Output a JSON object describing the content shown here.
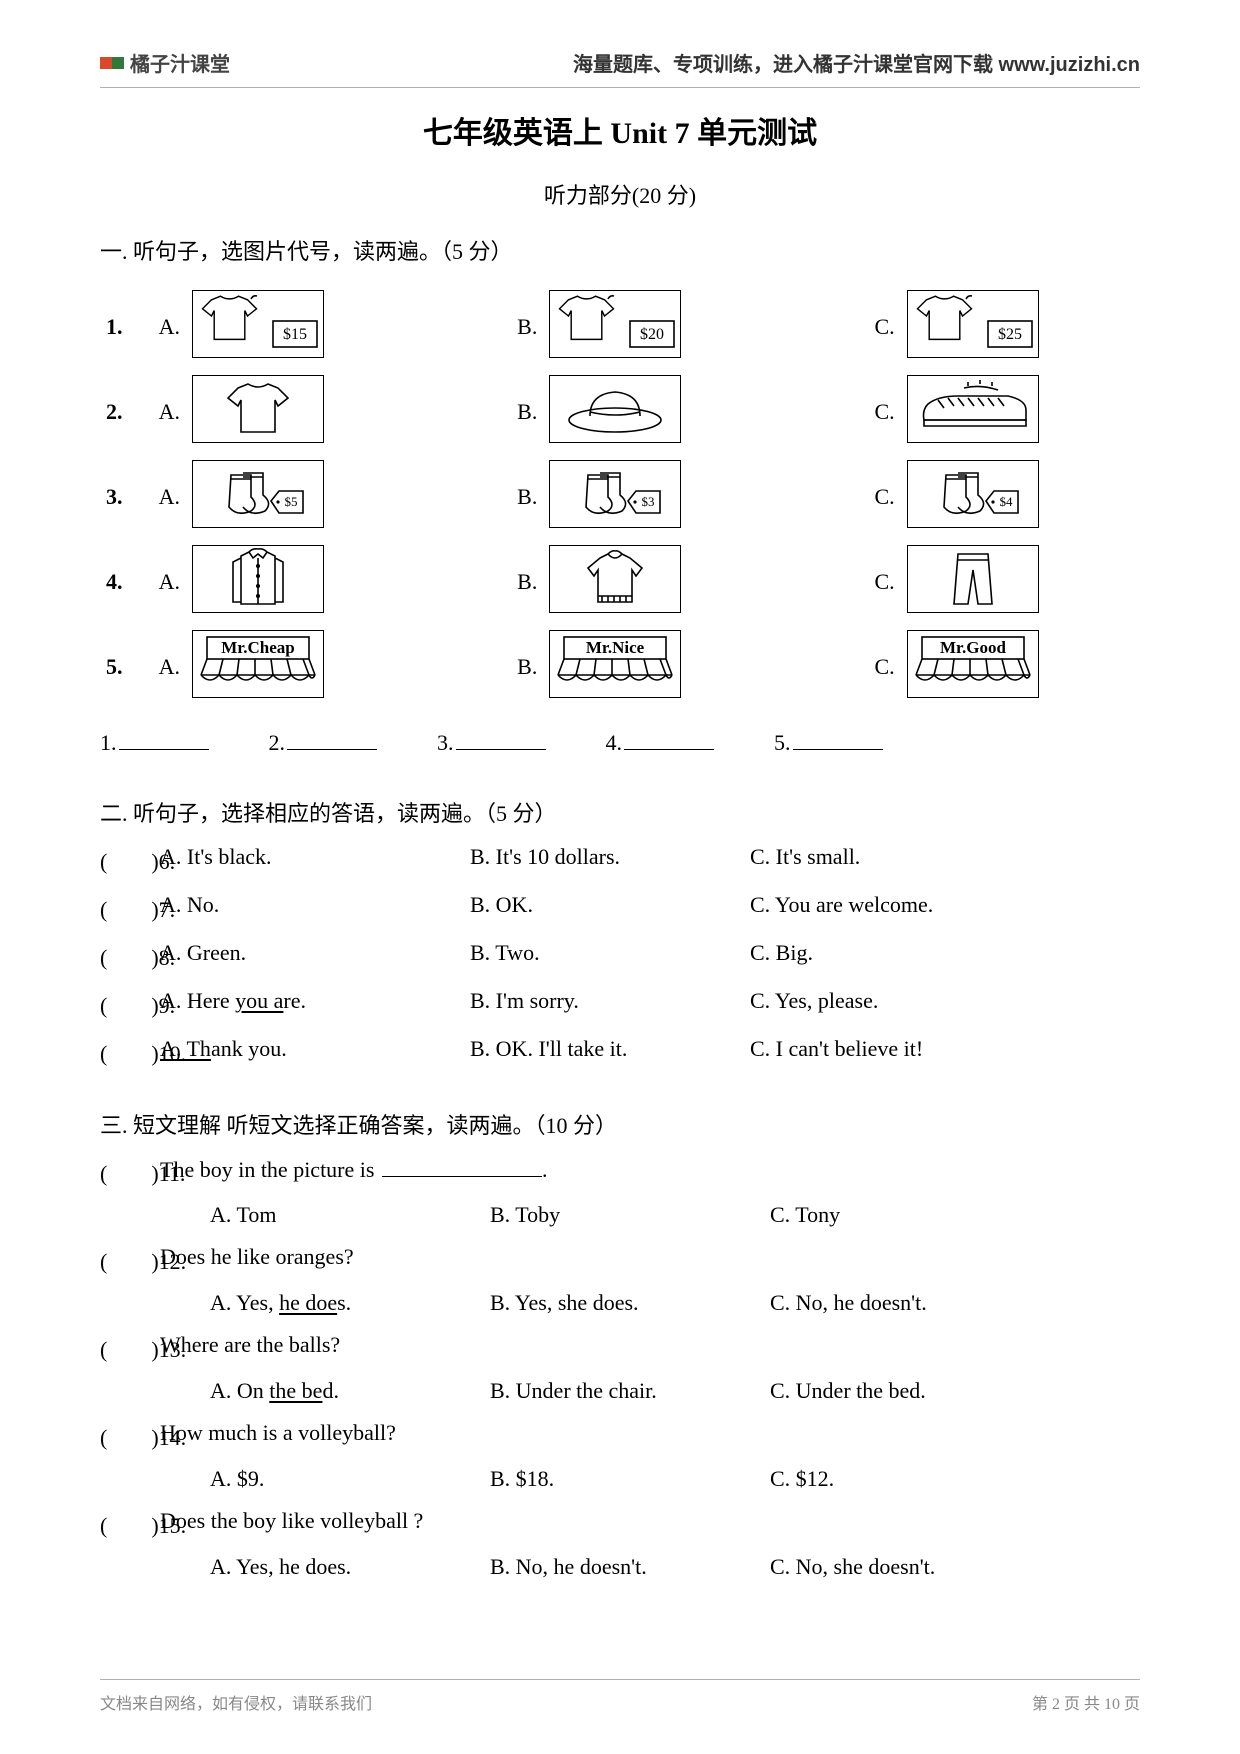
{
  "header": {
    "logo_text": "橘子汁课堂",
    "logo_colors": [
      "#d84a2b",
      "#2f7a3a"
    ],
    "right_text": "海量题库、专项训练，进入橘子汁课堂官网下载 www.juzizhi.cn"
  },
  "title": "七年级英语上 Unit 7 单元测试",
  "listening_header": "听力部分(20 分)",
  "section1": {
    "head": "一. 听句子，选图片代号，读两遍。（5 分）",
    "rows": [
      {
        "num": "1.",
        "A": {
          "type": "tshirt_price",
          "price": "$15"
        },
        "B": {
          "type": "tshirt_price",
          "price": "$20"
        },
        "C": {
          "type": "tshirt_price",
          "price": "$25"
        }
      },
      {
        "num": "2.",
        "A": {
          "type": "tshirt"
        },
        "B": {
          "type": "hat"
        },
        "C": {
          "type": "shoes"
        }
      },
      {
        "num": "3.",
        "A": {
          "type": "socks_price",
          "price": "$5"
        },
        "B": {
          "type": "socks_price",
          "price": "$3"
        },
        "C": {
          "type": "socks_price",
          "price": "$4"
        }
      },
      {
        "num": "4.",
        "A": {
          "type": "shirt"
        },
        "B": {
          "type": "sweater"
        },
        "C": {
          "type": "pants"
        }
      },
      {
        "num": "5.",
        "A": {
          "type": "store",
          "label": "Mr.Cheap"
        },
        "B": {
          "type": "store",
          "label": "Mr.Nice"
        },
        "C": {
          "type": "store",
          "label": "Mr.Good"
        }
      }
    ],
    "blanks": [
      "1.",
      "2.",
      "3.",
      "4.",
      "5."
    ]
  },
  "section2": {
    "head": "二. 听句子，选择相应的答语，读两遍。（5 分）",
    "items": [
      {
        "n": "6",
        "A": "A. It's black.",
        "B": "B. It's 10 dollars.",
        "C": "C. It's small."
      },
      {
        "n": "7",
        "A": "A. No.",
        "B": "B. OK.",
        "C": "C. You are welcome."
      },
      {
        "n": "8",
        "A": "A. Green.",
        "B": "B. Two.",
        "C": "C. Big."
      },
      {
        "n": "9",
        "A_pre": "A. Here ",
        "A_u": "you a",
        "A_post": "re.",
        "B": "B. I'm sorry.",
        "C": "C. Yes, please."
      },
      {
        "n": "10",
        "A_u": "A. Th",
        "A_post": "ank you.",
        "B": "B. OK. I'll take it.",
        "C": "C. I can't believe it!"
      }
    ]
  },
  "section3": {
    "head": "三. 短文理解 听短文选择正确答案，读两遍。（10 分）",
    "items": [
      {
        "n": "11",
        "stem_pre": "The boy in the picture is ",
        "stem_post": ".",
        "A": "A. Tom",
        "B": "B. Toby",
        "C": "C. Tony"
      },
      {
        "n": "12",
        "stem": "Does he like oranges?",
        "A_pre": "A. Yes, ",
        "A_u": "he doe",
        "A_post": "s.",
        "B": "B. Yes, she does.",
        "C": "C. No, he doesn't."
      },
      {
        "n": "13",
        "stem": "Where are the balls?",
        "A_pre": "A. On ",
        "A_u": "the be",
        "A_post": "d.",
        "B": "B. Under the chair.",
        "C": "C. Under the bed."
      },
      {
        "n": "14",
        "stem": "How much is a volleyball?",
        "A": "A. $9.",
        "B": "B. $18.",
        "C": "C. $12."
      },
      {
        "n": "15",
        "stem": "Does the boy like volleyball ?",
        "A": "A. Yes, he does.",
        "B": "B. No, he doesn't.",
        "C": "C. No, she doesn't."
      }
    ]
  },
  "footer": {
    "left": "文档来自网络，如有侵权，请联系我们",
    "right": "第 2 页 共 10 页"
  },
  "svg": {
    "stroke": "#000000",
    "stroke_width": 1.6
  }
}
